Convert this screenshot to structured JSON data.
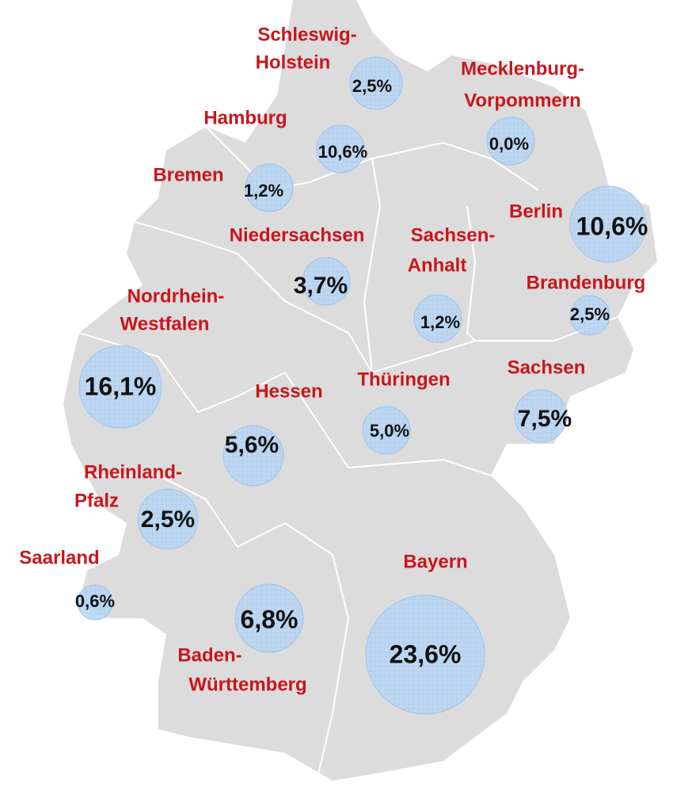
{
  "regions": [
    {
      "name": [
        "Schleswig-",
        "Holstein"
      ],
      "value": 2.5,
      "value_label": "2,5%"
    },
    {
      "name": [
        "Mecklenburg-",
        "Vorpommern"
      ],
      "value": 0.0,
      "value_label": "0,0%"
    },
    {
      "name": [
        "Hamburg"
      ],
      "value": 10.6,
      "value_label": "10,6%"
    },
    {
      "name": [
        "Bremen"
      ],
      "value": 1.2,
      "value_label": "1,2%"
    },
    {
      "name": [
        "Berlin"
      ],
      "value": 10.6,
      "value_label": "10,6%"
    },
    {
      "name": [
        "Niedersachsen"
      ],
      "value": 3.7,
      "value_label": "3,7%"
    },
    {
      "name": [
        "Sachsen-",
        "Anhalt"
      ],
      "value": 1.2,
      "value_label": "1,2%"
    },
    {
      "name": [
        "Brandenburg"
      ],
      "value": 2.5,
      "value_label": "2,5%"
    },
    {
      "name": [
        "Nordrhein-",
        "Westfalen"
      ],
      "value": 16.1,
      "value_label": "16,1%"
    },
    {
      "name": [
        "Sachsen"
      ],
      "value": 7.5,
      "value_label": "7,5%"
    },
    {
      "name": [
        "Thüringen"
      ],
      "value": 5.0,
      "value_label": "5,0%"
    },
    {
      "name": [
        "Hessen"
      ],
      "value": 5.6,
      "value_label": "5,6%"
    },
    {
      "name": [
        "Rheinland-",
        "Pfalz"
      ],
      "value": 2.5,
      "value_label": "2,5%"
    },
    {
      "name": [
        "Saarland"
      ],
      "value": 0.6,
      "value_label": "0,6%"
    },
    {
      "name": [
        "Bayern"
      ],
      "value": 23.6,
      "value_label": "23,6%"
    },
    {
      "name": [
        "Baden-",
        "Württemberg"
      ],
      "value": 6.8,
      "value_label": "6,8%"
    }
  ]
}
